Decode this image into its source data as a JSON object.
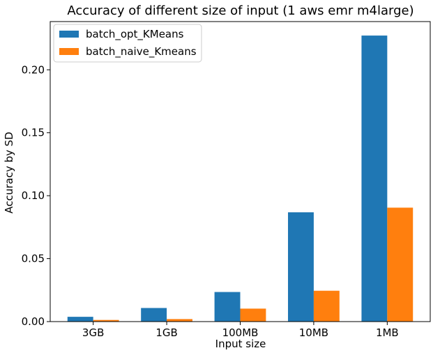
{
  "chart_data": {
    "type": "bar",
    "title": "Accuracy of different size of input (1 aws emr m4large)",
    "xlabel": "Input size",
    "ylabel": "Accuracy by SD",
    "categories": [
      "3GB",
      "1GB",
      "100MB",
      "10MB",
      "1MB"
    ],
    "series": [
      {
        "name": "batch_opt_KMeans",
        "color": "#1f77b4",
        "values": [
          0.0038,
          0.0108,
          0.0235,
          0.0868,
          0.2272
        ]
      },
      {
        "name": "batch_naive_Kmeans",
        "color": "#ff7f0e",
        "values": [
          0.0013,
          0.002,
          0.0103,
          0.0245,
          0.0905
        ]
      }
    ],
    "ylim": [
      0,
      0.2383
    ],
    "yticks": [
      0.0,
      0.05,
      0.1,
      0.15,
      0.2
    ],
    "ytick_labels": [
      "0.00",
      "0.05",
      "0.10",
      "0.15",
      "0.20"
    ],
    "legend_position": "top-left",
    "grid": false
  }
}
